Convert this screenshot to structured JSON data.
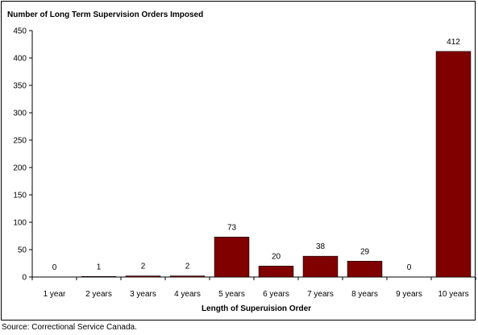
{
  "chart_data": {
    "type": "bar",
    "title": "Number of Long Term Supervision Orders Imposed",
    "xlabel": "Length of Superuision Order",
    "ylabel": "",
    "categories": [
      "1 year",
      "2 years",
      "3 years",
      "4 years",
      "5 years",
      "6 years",
      "7 years",
      "8 years",
      "9 years",
      "10 years"
    ],
    "values": [
      0,
      1,
      2,
      2,
      73,
      20,
      38,
      29,
      0,
      412
    ],
    "data_labels": [
      "0",
      "1",
      "2",
      "2",
      "73",
      "20",
      "38",
      "29",
      "0",
      "412"
    ],
    "ylim": [
      0,
      450
    ],
    "yticks": [
      0,
      50,
      100,
      150,
      200,
      250,
      300,
      350,
      400,
      450
    ],
    "ytick_labels": [
      "0",
      "50",
      "100",
      "150",
      "200",
      "250",
      "300",
      "350",
      "400",
      "450"
    ],
    "grid": false,
    "legend": "none",
    "bar_color": "#800000"
  },
  "footer": {
    "source": "Source: Correctional Service Canada."
  }
}
